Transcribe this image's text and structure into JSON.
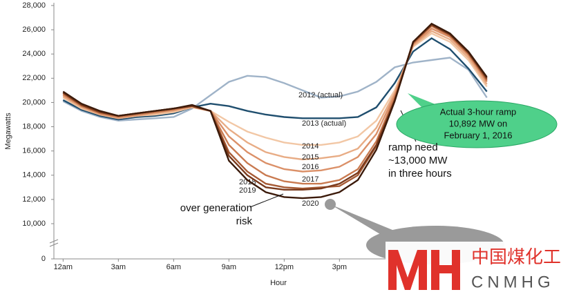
{
  "chart_data": {
    "type": "line",
    "y_axis_label": "Megawatts",
    "x_axis_label": "Hour",
    "x": [
      0,
      1,
      2,
      3,
      4,
      5,
      6,
      7,
      8,
      9,
      10,
      11,
      12,
      13,
      14,
      15,
      16,
      17,
      18,
      19,
      20,
      21,
      22,
      23
    ],
    "xlim": [
      -0.5,
      23.2
    ],
    "xticks": [
      {
        "value": 0,
        "label": "12am"
      },
      {
        "value": 3,
        "label": "3am"
      },
      {
        "value": 6,
        "label": "6am"
      },
      {
        "value": 9,
        "label": "9am"
      },
      {
        "value": 12,
        "label": "12pm"
      },
      {
        "value": 15,
        "label": "3pm"
      }
    ],
    "ylim": [
      0,
      28000
    ],
    "y_break": [
      0,
      10000
    ],
    "yticks": [
      0,
      {
        "value": 10000,
        "label": "10,000"
      },
      {
        "value": 12000,
        "label": "12,000"
      },
      {
        "value": 14000,
        "label": "14,000"
      },
      {
        "value": 16000,
        "label": "16,000"
      },
      {
        "value": 18000,
        "label": "18,000"
      },
      {
        "value": 20000,
        "label": "20,000"
      },
      {
        "value": 22000,
        "label": "22,000"
      },
      {
        "value": 24000,
        "label": "24,000"
      },
      {
        "value": 26000,
        "label": "26,000"
      },
      {
        "value": 28000,
        "label": "28,000"
      }
    ],
    "series": [
      {
        "name": "2012 (actual)",
        "color": "#9fb3c8",
        "values": [
          20100,
          19300,
          18800,
          18500,
          18600,
          18700,
          18800,
          19500,
          20600,
          21700,
          22200,
          22100,
          21600,
          21000,
          20400,
          20500,
          20900,
          21700,
          22900,
          23300,
          23500,
          23700,
          22700,
          20400
        ]
      },
      {
        "name": "2013 (actual)",
        "color": "#1f4e6e",
        "values": [
          20200,
          19400,
          18900,
          18600,
          18800,
          18900,
          19100,
          19600,
          19900,
          19700,
          19300,
          19000,
          18800,
          18700,
          18700,
          18700,
          18800,
          19600,
          21600,
          24200,
          25300,
          24400,
          22800,
          20900
        ]
      },
      {
        "name": "2014",
        "color": "#f2c7a5",
        "values": [
          20400,
          19500,
          19000,
          18700,
          18900,
          19000,
          19200,
          19600,
          19300,
          18400,
          17600,
          17100,
          16700,
          16500,
          16500,
          16700,
          17200,
          18500,
          21000,
          24600,
          25700,
          25000,
          23500,
          21300
        ]
      },
      {
        "name": "2015",
        "color": "#e8ac85",
        "values": [
          20500,
          19600,
          19000,
          18700,
          18900,
          19100,
          19300,
          19600,
          19300,
          17800,
          16700,
          15900,
          15500,
          15300,
          15400,
          15600,
          16200,
          17900,
          20800,
          24700,
          25900,
          25200,
          23700,
          21500
        ]
      },
      {
        "name": "2016",
        "color": "#db9068",
        "values": [
          20600,
          19700,
          19100,
          18800,
          19000,
          19200,
          19400,
          19700,
          19300,
          17200,
          15900,
          15000,
          14500,
          14300,
          14400,
          14700,
          15500,
          17400,
          20600,
          24800,
          26100,
          25400,
          23900,
          21700
        ]
      },
      {
        "name": "2017",
        "color": "#c97a50",
        "values": [
          20700,
          19700,
          19100,
          18800,
          19000,
          19200,
          19400,
          19700,
          19300,
          16500,
          15000,
          14000,
          13500,
          13300,
          13300,
          13600,
          14500,
          16800,
          20400,
          24900,
          26300,
          25500,
          24000,
          21800
        ]
      },
      {
        "name": "2018",
        "color": "#a65a34",
        "values": [
          20800,
          19800,
          19200,
          18900,
          19100,
          19300,
          19500,
          19700,
          19300,
          15900,
          14300,
          13300,
          13000,
          12900,
          13000,
          13100,
          14000,
          16400,
          20200,
          24900,
          26400,
          25600,
          24100,
          21900
        ]
      },
      {
        "name": "2019",
        "color": "#7a3a1c",
        "values": [
          20800,
          19800,
          19200,
          18900,
          19100,
          19300,
          19500,
          19700,
          19300,
          15600,
          14000,
          13000,
          12800,
          12800,
          12900,
          13300,
          14200,
          16500,
          20200,
          25000,
          26400,
          25600,
          24100,
          22000
        ]
      },
      {
        "name": "2020",
        "color": "#3b1a0a",
        "values": [
          20900,
          19900,
          19300,
          18900,
          19100,
          19300,
          19500,
          19800,
          19300,
          15200,
          13600,
          12600,
          12200,
          12100,
          12200,
          12600,
          13600,
          16100,
          20100,
          25000,
          26500,
          25700,
          24200,
          22100
        ]
      }
    ],
    "annotations": {
      "over_generation": [
        "over generation",
        "risk"
      ],
      "ramp_need": [
        "ramp need",
        "~13,000 MW",
        "in three hours"
      ],
      "actual_ramp": [
        "Actual 3-hour ramp",
        "10,892 MW on",
        "February 1, 2016"
      ]
    },
    "watermark": {
      "chinese": "中国煤化工",
      "latin": "CNMHG"
    }
  }
}
